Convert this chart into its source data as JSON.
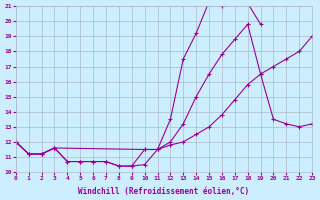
{
  "xlabel": "Windchill (Refroidissement éolien,°C)",
  "background_color": "#cceeff",
  "grid_color": "#aabbcc",
  "line_color": "#990099",
  "xmin": 0,
  "xmax": 23,
  "ymin": 10,
  "ymax": 21,
  "line1_x": [
    0,
    1,
    2,
    3,
    4,
    5,
    6,
    7,
    8,
    9,
    10,
    11,
    12,
    13,
    14,
    15,
    16,
    17,
    18,
    19
  ],
  "line1_y": [
    12.0,
    11.2,
    11.2,
    11.6,
    10.7,
    10.7,
    10.7,
    10.7,
    10.4,
    10.4,
    10.5,
    11.5,
    13.5,
    17.5,
    19.2,
    21.3,
    21.0,
    21.3,
    21.2,
    19.8
  ],
  "line2_x": [
    0,
    1,
    2,
    3,
    10,
    11,
    12,
    13,
    14,
    15,
    16,
    17,
    18,
    19,
    20,
    21,
    22,
    23
  ],
  "line2_y": [
    12.0,
    11.2,
    11.2,
    11.6,
    11.5,
    11.5,
    12.0,
    13.2,
    15.0,
    16.5,
    17.8,
    18.8,
    19.8,
    16.5,
    13.5,
    13.2,
    13.0,
    13.2
  ],
  "line3_x": [
    0,
    1,
    2,
    3,
    4,
    5,
    6,
    7,
    8,
    9,
    10,
    11,
    12,
    13,
    14,
    15,
    16,
    17,
    18,
    19,
    20,
    21,
    22,
    23
  ],
  "line3_y": [
    12.0,
    11.2,
    11.2,
    11.6,
    10.7,
    10.7,
    10.7,
    10.7,
    10.4,
    10.4,
    11.5,
    11.5,
    11.8,
    12.0,
    12.5,
    13.0,
    13.8,
    14.8,
    15.8,
    16.5,
    17.0,
    17.5,
    18.0,
    19.0
  ]
}
